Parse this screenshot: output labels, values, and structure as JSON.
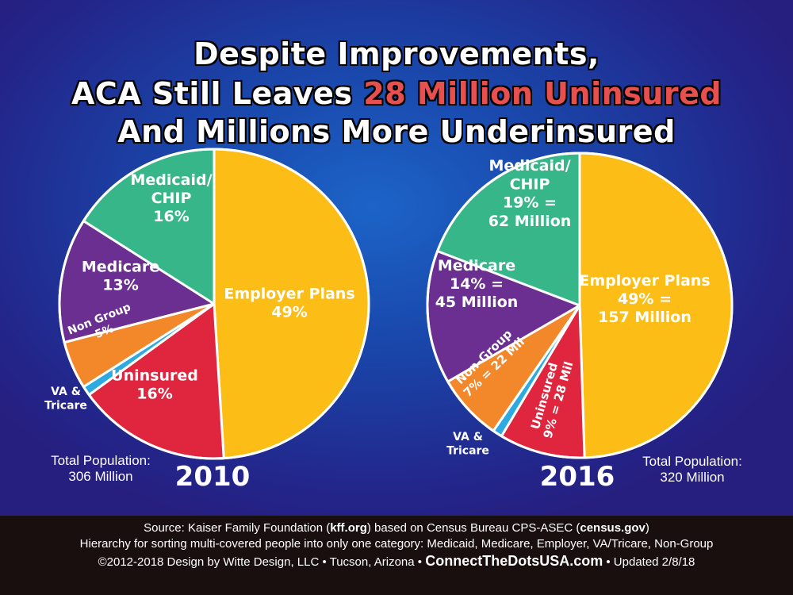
{
  "title": {
    "line1": "Despite Improvements,",
    "line2_prefix": "ACA Still Leaves ",
    "line2_highlight": "28 Million Uninsured",
    "line3": "And Millions More Underinsured"
  },
  "chart_data": [
    {
      "type": "pie",
      "year": "2010",
      "total_label": "Total Population:",
      "total_value": "306 Million",
      "slices": [
        {
          "name": "Employer Plans",
          "value": 49,
          "label_lines": [
            "Employer Plans",
            "49%"
          ],
          "color": "#fbbd16"
        },
        {
          "name": "Uninsured",
          "value": 16,
          "label_lines": [
            "Uninsured",
            "16%"
          ],
          "color": "#e0253f"
        },
        {
          "name": "VA & Tricare",
          "value": 1,
          "label_lines": [],
          "color": "#2daae1"
        },
        {
          "name": "Non Group",
          "value": 5,
          "label_lines": [
            "Non Group",
            "5%"
          ],
          "color": "#f3882a"
        },
        {
          "name": "Medicare",
          "value": 13,
          "label_lines": [
            "Medicare",
            "13%"
          ],
          "color": "#6b2e91"
        },
        {
          "name": "Medicaid/CHIP",
          "value": 16,
          "label_lines": [
            "Medicaid/",
            "CHIP",
            "16%"
          ],
          "color": "#37b68a"
        }
      ],
      "outside_label": [
        "VA &",
        "Tricare"
      ]
    },
    {
      "type": "pie",
      "year": "2016",
      "total_label": "Total Population:",
      "total_value": "320 Million",
      "slices": [
        {
          "name": "Employer Plans",
          "value": 49,
          "label_lines": [
            "Employer Plans",
            "49% =",
            "157 Million"
          ],
          "color": "#fbbd16"
        },
        {
          "name": "Uninsured",
          "value": 9,
          "label_lines": [
            "Uninsured",
            "9% = 28 Mil"
          ],
          "color": "#e0253f"
        },
        {
          "name": "VA & Tricare",
          "value": 1,
          "label_lines": [],
          "color": "#2daae1"
        },
        {
          "name": "Non-Group",
          "value": 7,
          "label_lines": [
            "Non-Group",
            "7% = 22 Mil"
          ],
          "color": "#f3882a"
        },
        {
          "name": "Medicare",
          "value": 14,
          "label_lines": [
            "Medicare",
            "14% =",
            "45 Million"
          ],
          "color": "#6b2e91"
        },
        {
          "name": "Medicaid/CHIP",
          "value": 19,
          "label_lines": [
            "Medicaid/",
            "CHIP",
            "19% =",
            "62 Million"
          ],
          "color": "#37b68a"
        }
      ],
      "outside_label": [
        "VA &",
        "Tricare"
      ]
    }
  ],
  "footer": {
    "line1_a": "Source: Kaiser Family Foundation (",
    "line1_b": "kff.org",
    "line1_c": ") based on Census Bureau CPS-ASEC (",
    "line1_d": "census.gov",
    "line1_e": ")",
    "line2": "Hierarchy for sorting multi-covered people into only one category: Medicaid, Medicare, Employer, VA/Tricare, Non-Group",
    "line3_a": "©2012-2018 Design by Witte Design, LLC • Tucson, Arizona • ",
    "line3_site": "ConnectTheDotsUSA.com",
    "line3_c": " • Updated 2/8/18"
  }
}
